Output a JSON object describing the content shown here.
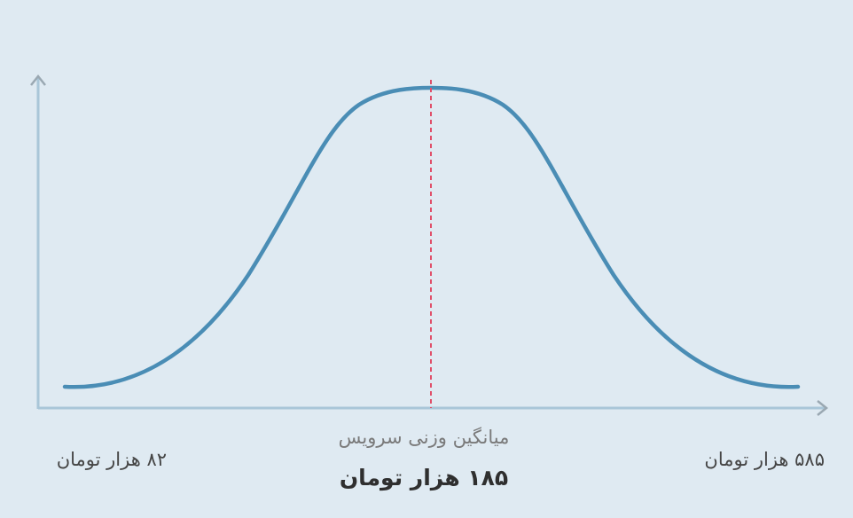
{
  "labels": {
    "min": "۸۲ هزار تومان",
    "max": "۵۸۵ هزار تومان",
    "average_caption": "میانگین وزنی سرویس",
    "average": "۱۸۵ هزار تومان"
  }
}
